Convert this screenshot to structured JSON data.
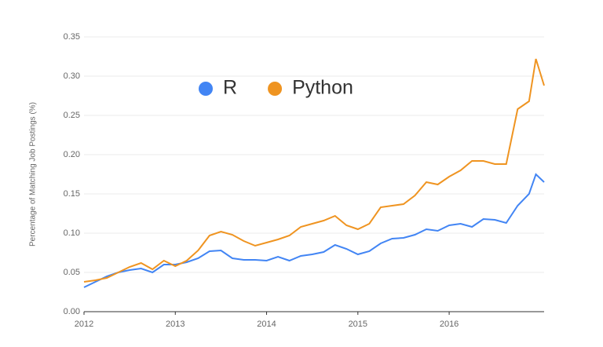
{
  "chart_data": {
    "type": "line",
    "y_label": "Percentage of Matching Job Postings (%)",
    "x": [
      2012.0,
      2012.125,
      2012.25,
      2012.375,
      2012.5,
      2012.625,
      2012.75,
      2012.875,
      2013.0,
      2013.125,
      2013.25,
      2013.375,
      2013.5,
      2013.625,
      2013.75,
      2013.875,
      2014.0,
      2014.125,
      2014.25,
      2014.375,
      2014.5,
      2014.625,
      2014.75,
      2014.875,
      2015.0,
      2015.125,
      2015.25,
      2015.375,
      2015.5,
      2015.625,
      2015.75,
      2015.875,
      2016.0,
      2016.125,
      2016.25,
      2016.375,
      2016.5,
      2016.625,
      2016.75,
      2016.875,
      2016.95,
      2017.04
    ],
    "series": [
      {
        "name": "R",
        "color": "#4285f4",
        "values": [
          0.031,
          0.038,
          0.045,
          0.05,
          0.053,
          0.055,
          0.05,
          0.06,
          0.06,
          0.063,
          0.068,
          0.077,
          0.078,
          0.068,
          0.066,
          0.066,
          0.065,
          0.07,
          0.065,
          0.071,
          0.073,
          0.076,
          0.085,
          0.08,
          0.073,
          0.077,
          0.087,
          0.093,
          0.094,
          0.098,
          0.105,
          0.103,
          0.11,
          0.112,
          0.108,
          0.118,
          0.117,
          0.113,
          0.135,
          0.15,
          0.175,
          0.165
        ]
      },
      {
        "name": "Python",
        "color": "#ef9421",
        "values": [
          0.038,
          0.04,
          0.043,
          0.05,
          0.057,
          0.062,
          0.054,
          0.065,
          0.058,
          0.065,
          0.078,
          0.097,
          0.102,
          0.098,
          0.09,
          0.084,
          0.088,
          0.092,
          0.097,
          0.108,
          0.112,
          0.116,
          0.122,
          0.11,
          0.105,
          0.112,
          0.133,
          0.135,
          0.137,
          0.148,
          0.165,
          0.162,
          0.172,
          0.18,
          0.192,
          0.192,
          0.188,
          0.188,
          0.258,
          0.268,
          0.322,
          0.288
        ]
      }
    ],
    "xlim": [
      2012,
      2017.04
    ],
    "xticks": [
      2012,
      2013,
      2014,
      2015,
      2016
    ],
    "ylim": [
      0,
      0.35
    ],
    "yticks": [
      {
        "value": 0,
        "label": "0.00"
      },
      0.05,
      {
        "value": 0.1,
        "label": "0.10"
      },
      0.15,
      {
        "value": 0.2,
        "label": "0.20"
      },
      0.25,
      {
        "value": 0.3,
        "label": "0.30"
      },
      0.35
    ],
    "grid": true,
    "legend": "top"
  }
}
